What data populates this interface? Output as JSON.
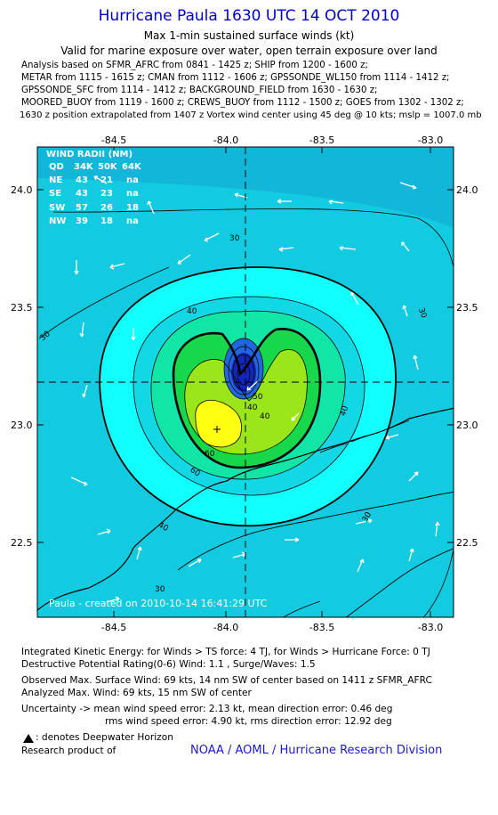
{
  "header": {
    "title": "Hurricane Paula 1630 UTC 14 OCT 2010",
    "subtitle": "Max 1-min sustained surface winds (kt)",
    "validity": "Valid for marine exposure over water, open terrain exposure over land",
    "analysis_lines": [
      "Analysis based on SFMR_AFRC from 0841 - 1425 z; SHIP from 1200 - 1600 z;",
      "METAR from 1115 - 1615 z; CMAN from 1112 - 1606 z; GPSSONDE_WL150 from 1114 - 1412 z;",
      "GPSSONDE_SFC from 1114 - 1412 z; BACKGROUND_FIELD from 1630 - 1630 z;",
      "MOORED_BUOY from 1119 - 1600 z; CREWS_BUOY from 1112 - 1500 z; GOES from 1302 - 1302 z;",
      "1630 z position extrapolated from 1407 z Vortex wind center using 45 deg @ 10 kts; mslp = 1007.0 mb"
    ]
  },
  "map": {
    "lon_ticks": [
      "-84.5",
      "-84.0",
      "-83.5",
      "-83.0"
    ],
    "lat_ticks": [
      "24.0",
      "23.5",
      "23.0",
      "22.5"
    ],
    "wind_radii": {
      "title": "WIND RADII (NM)",
      "header": [
        "QD",
        "34K",
        "50K",
        "64K"
      ],
      "rows": [
        [
          "NE",
          "43",
          "21",
          "na"
        ],
        [
          "SE",
          "43",
          "23",
          "na"
        ],
        [
          "SW",
          "57",
          "26",
          "18"
        ],
        [
          "NW",
          "39",
          "18",
          "na"
        ]
      ]
    },
    "contour_labels": [
      "30",
      "30",
      "30",
      "30",
      "40",
      "40",
      "40",
      "40",
      "50",
      "60",
      "60",
      "30",
      "40"
    ],
    "created_label": "Paula - created on 2010-10-14 16:41:29 UTC",
    "colors": {
      "shade_30": "#12b6d8",
      "shade_40": "#12d8e6",
      "shade_50": "#12ffff",
      "shade_60": "#12e6a6",
      "shade_70": "#16d84a",
      "shade_80": "#9ae61a",
      "shade_90": "#ffff12",
      "core_dark": "#1426b8",
      "core_mid": "#2266dd"
    }
  },
  "footer": {
    "ike": "Integrated Kinetic Energy:  for Winds > TS force: 4 TJ,  for Winds > Hurricane Force: 0 TJ",
    "destructive": "Destructive Potential Rating(0-6)   Wind: 1.1 , Surge/Waves: 1.5",
    "observed": "Observed Max. Surface Wind: 69 kts, 14 nm SW of center based on 1411 z SFMR_AFRC",
    "analyzed": "Analyzed Max. Wind: 69 kts, 15 nm SW of center",
    "uncertainty1": "Uncertainty -> mean wind speed error: 2.13 kt,   mean direction error: 0.46 deg",
    "uncertainty2": "rms wind speed error: 4.90 kt,   rms direction error: 12.92 deg",
    "deepwater": ": denotes Deepwater Horizon",
    "research": "Research product of",
    "org": "NOAA / AOML / Hurricane Research Division"
  }
}
